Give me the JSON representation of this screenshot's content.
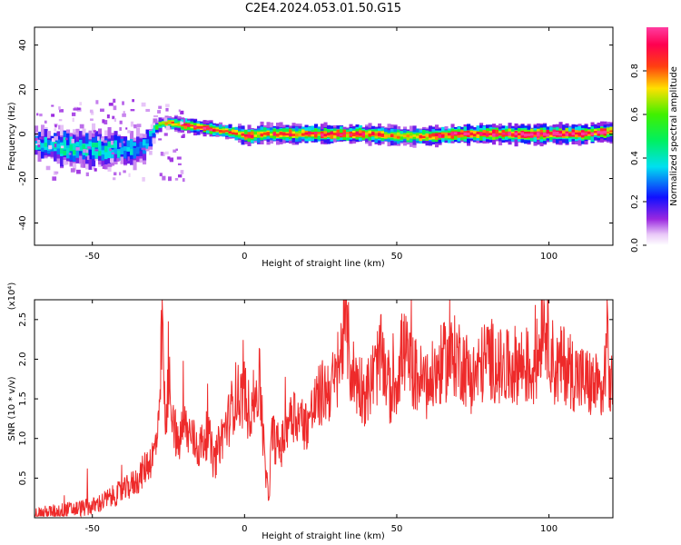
{
  "figure": {
    "title": "C2E4.2024.053.01.50.G15"
  },
  "chart_data": [
    {
      "type": "heatmap",
      "title": "C2E4.2024.053.01.50.G15",
      "xlabel": "Height of straight line (km)",
      "ylabel": "Frequency (Hz)",
      "xlim": [
        -69,
        121
      ],
      "ylim": [
        -50,
        48
      ],
      "x_ticks": [
        -50,
        0,
        50,
        100
      ],
      "x_tick_labels": [
        "-50",
        "0",
        "50",
        "100"
      ],
      "y_ticks": [
        -40,
        -20,
        0,
        20,
        40
      ],
      "y_tick_labels": [
        "-40",
        "-20",
        "0",
        "20",
        "40"
      ],
      "grid": false,
      "colorbar": {
        "label": "Normalized spectral amplitude",
        "range": [
          0,
          1
        ],
        "ticks": [
          0.0,
          0.2,
          0.4,
          0.6,
          0.8
        ],
        "tick_labels": [
          "0.0",
          "0.2",
          "0.4",
          "0.6",
          "0.8"
        ],
        "colormap": "rainbow (white-purple-blue-cyan-green-yellow-red-magenta)"
      },
      "ridge": {
        "x": [
          -68,
          -60,
          -50,
          -40,
          -33,
          -31,
          -28,
          -25,
          -20,
          -15,
          -10,
          -5,
          -2,
          0,
          5,
          10,
          20,
          30,
          40,
          50,
          60,
          70,
          80,
          90,
          100,
          110,
          120
        ],
        "freq": [
          -5,
          -6,
          -7,
          -7,
          -6,
          0,
          5,
          5,
          4,
          3,
          2,
          1,
          0,
          -1,
          0,
          0,
          0,
          0,
          0,
          -1,
          -1,
          0,
          0,
          0,
          0,
          0,
          1
        ],
        "amplitude": [
          0.35,
          0.4,
          0.4,
          0.35,
          0.3,
          0.4,
          0.6,
          0.7,
          0.8,
          0.85,
          0.85,
          0.8,
          0.7,
          0.8,
          0.75,
          0.8,
          0.8,
          0.85,
          0.8,
          0.75,
          0.8,
          0.85,
          0.9,
          0.95,
          0.95,
          0.9,
          0.85
        ],
        "spread_hz": [
          7,
          8,
          8,
          8,
          7,
          4,
          3,
          3,
          3,
          3,
          3,
          3,
          4,
          4,
          4,
          4,
          4,
          4,
          4,
          4,
          4,
          4,
          4,
          4,
          4,
          4,
          4
        ]
      }
    },
    {
      "type": "line",
      "xlabel": "Height of straight line (km)",
      "ylabel": "SNR (10 * v/v)",
      "y_multiplier_label": "(x10⁴)",
      "xlim": [
        -69,
        121
      ],
      "ylim": [
        0,
        2.75
      ],
      "x_ticks": [
        -50,
        0,
        50,
        100
      ],
      "x_tick_labels": [
        "-50",
        "0",
        "50",
        "100"
      ],
      "y_ticks": [
        0.5,
        1.0,
        1.5,
        2.0,
        2.5
      ],
      "y_tick_labels": [
        "0.5",
        "1.0",
        "1.5",
        "2.0",
        "2.5"
      ],
      "grid": false,
      "color": "#ee2a2a",
      "x": [
        -69,
        -60,
        -50,
        -45,
        -40,
        -35,
        -32,
        -30,
        -28,
        -27,
        -26,
        -25,
        -22,
        -20,
        -15,
        -12,
        -10,
        -8,
        -5,
        -3,
        -1,
        0,
        1,
        3,
        5,
        7,
        8,
        9,
        10,
        12,
        15,
        20,
        25,
        30,
        32,
        33,
        35,
        40,
        45,
        48,
        50,
        52,
        55,
        60,
        65,
        70,
        75,
        80,
        85,
        90,
        95,
        97,
        98,
        99,
        100,
        102,
        105,
        110,
        115,
        118,
        119,
        120,
        121
      ],
      "y": [
        0.05,
        0.1,
        0.15,
        0.25,
        0.35,
        0.5,
        0.7,
        0.8,
        1.2,
        2.65,
        1.0,
        1.8,
        0.9,
        1.2,
        0.9,
        1.1,
        0.7,
        1.0,
        1.3,
        1.6,
        1.55,
        1.65,
        1.4,
        1.5,
        1.75,
        0.5,
        0.3,
        1.1,
        1.0,
        0.9,
        1.4,
        1.2,
        1.6,
        1.75,
        2.2,
        2.65,
        1.9,
        1.6,
        2.1,
        1.6,
        1.8,
        2.2,
        1.9,
        1.7,
        2.0,
        2.1,
        1.8,
        2.1,
        1.9,
        2.0,
        1.9,
        2.2,
        2.75,
        2.5,
        2.3,
        1.9,
        2.0,
        1.8,
        1.7,
        1.6,
        2.5,
        1.65,
        1.75
      ]
    }
  ]
}
